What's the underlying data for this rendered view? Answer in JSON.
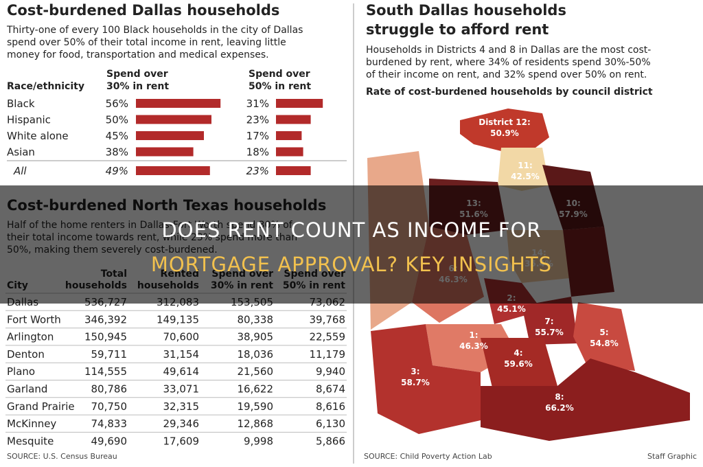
{
  "overlay": {
    "line1": "DOES RENT COUNT AS INCOME FOR",
    "line2": "MORTGAGE APPROVAL? KEY INSIGHTS"
  },
  "dallas": {
    "title": "Cost-burdened Dallas households",
    "intro": [
      "Thirty-one of every 100 Black households in the city of Dallas",
      "spend over 50% of their total income in rent, leaving little",
      "money for food, transportation and medical expenses."
    ],
    "headers": {
      "race": "Race/ethnicity",
      "over30": [
        "Spend over",
        "30% in rent"
      ],
      "over50": [
        "Spend over",
        "50% in rent"
      ]
    },
    "rows": [
      {
        "label": "Black",
        "over30": {
          "value": 56,
          "label": "56%"
        },
        "over50": {
          "value": 31,
          "label": "31%"
        }
      },
      {
        "label": "Hispanic",
        "over30": {
          "value": 50,
          "label": "50%"
        },
        "over50": {
          "value": 23,
          "label": "23%"
        }
      },
      {
        "label": "White alone",
        "over30": {
          "value": 45,
          "label": "45%"
        },
        "over50": {
          "value": 17,
          "label": "17%"
        }
      },
      {
        "label": "Asian",
        "over30": {
          "value": 38,
          "label": "38%"
        },
        "over50": {
          "value": 18,
          "label": "18%"
        }
      },
      {
        "label": "All",
        "over30": {
          "value": 49,
          "label": "49%"
        },
        "over50": {
          "value": 23,
          "label": "23%"
        }
      }
    ],
    "source": "SOURCE: U.S. Census Bureau"
  },
  "north_texas": {
    "title": "Cost-burdened North Texas households",
    "intro": [
      "Half of the home renters in Dallas-Fort Worth spend 30% of",
      "their total income towards rent, while 23% spend more than",
      "50%, making them severely cost-burdened."
    ],
    "headers": [
      [
        "City"
      ],
      [
        "Total",
        "households"
      ],
      [
        "Rented",
        "households"
      ],
      [
        "Spend over",
        "30% in rent"
      ],
      [
        "Spend over",
        "50% in rent"
      ]
    ],
    "rows": [
      [
        "Dallas",
        "536,727",
        "312,083",
        "153,505",
        "73,062"
      ],
      [
        "Fort Worth",
        "346,392",
        "149,135",
        "80,338",
        "39,768"
      ],
      [
        "Arlington",
        "150,945",
        "70,600",
        "38,905",
        "22,559"
      ],
      [
        "Denton",
        "59,711",
        "31,154",
        "18,036",
        "11,179"
      ],
      [
        "Plano",
        "114,555",
        "49,614",
        "21,560",
        "9,940"
      ],
      [
        "Garland",
        "80,786",
        "33,071",
        "16,622",
        "8,674"
      ],
      [
        "Grand Prairie",
        "70,750",
        "32,315",
        "19,590",
        "8,616"
      ],
      [
        "McKinney",
        "74,833",
        "29,346",
        "12,868",
        "6,130"
      ],
      [
        "Mesquite",
        "49,690",
        "17,609",
        "9,998",
        "5,866"
      ]
    ]
  },
  "south_dallas": {
    "title": [
      "South Dallas households",
      "struggle to afford rent"
    ],
    "intro": [
      "Households in Districts 4 and 8 in Dallas are the most cost-",
      "burdened by rent, where 34% of residents spend 30%-50%",
      "of their income on rent, and 32% spend over 50% on rent."
    ],
    "subtitle": "Rate of cost-burdened households by council district",
    "districts": [
      {
        "name": "District 12:",
        "rate": "50.9%"
      },
      {
        "name": "11:",
        "rate": "42.5%"
      },
      {
        "name": "13:",
        "rate": "51.6%"
      },
      {
        "name": "10:",
        "rate": "57.9%"
      },
      {
        "name": "14:",
        "rate": "35.4%"
      },
      {
        "name": "6:",
        "rate": "46.3%"
      },
      {
        "name": "2:",
        "rate": "45.1%"
      },
      {
        "name": "7:",
        "rate": "55.7%"
      },
      {
        "name": "5:",
        "rate": "54.8%"
      },
      {
        "name": "1:",
        "rate": "46.3%"
      },
      {
        "name": "4:",
        "rate": "59.6%"
      },
      {
        "name": "3:",
        "rate": "58.7%"
      },
      {
        "name": "8:",
        "rate": "66.2%"
      }
    ],
    "source": "SOURCE: Child Poverty Action Lab",
    "credit": "Staff Graphic"
  }
}
